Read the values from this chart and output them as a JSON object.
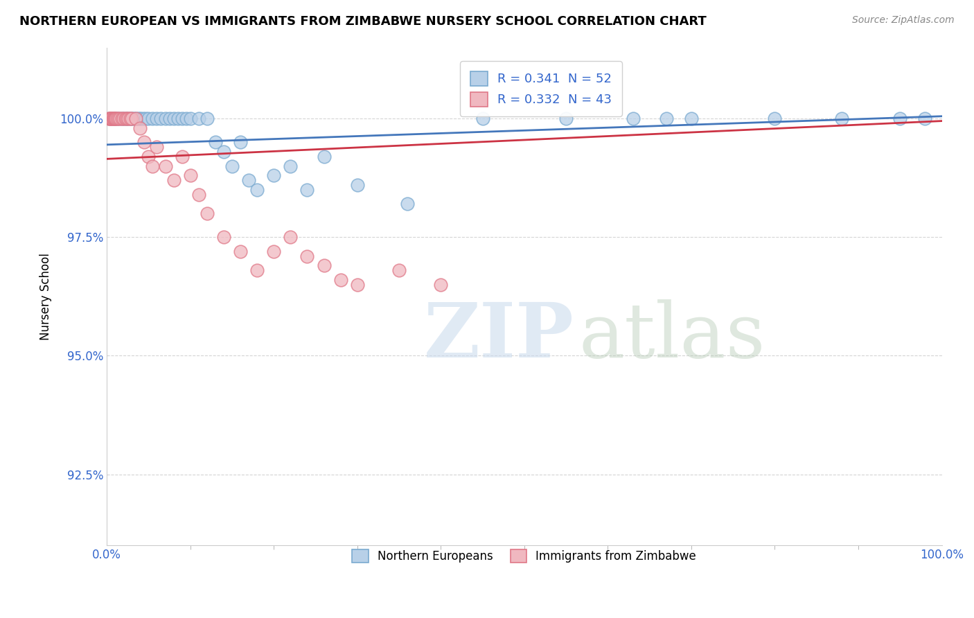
{
  "title": "NORTHERN EUROPEAN VS IMMIGRANTS FROM ZIMBABWE NURSERY SCHOOL CORRELATION CHART",
  "source": "Source: ZipAtlas.com",
  "ylabel": "Nursery School",
  "xlim": [
    0,
    100
  ],
  "ylim": [
    91.0,
    101.5
  ],
  "yticks": [
    92.5,
    95.0,
    97.5,
    100.0
  ],
  "xtick_labels": [
    "0.0%",
    "100.0%"
  ],
  "ytick_labels": [
    "92.5%",
    "95.0%",
    "97.5%",
    "100.0%"
  ],
  "blue_color": "#b8d0e8",
  "blue_edge_color": "#7aaad0",
  "pink_color": "#f0b8c0",
  "pink_edge_color": "#e07888",
  "blue_line_color": "#4477bb",
  "pink_line_color": "#cc3344",
  "legend_blue_label": "R = 0.341  N = 52",
  "legend_pink_label": "R = 0.332  N = 43",
  "watermark_zip": "ZIP",
  "watermark_atlas": "atlas",
  "blue_scatter_x": [
    0.3,
    0.5,
    0.8,
    1.0,
    1.2,
    1.5,
    1.8,
    2.0,
    2.3,
    2.5,
    2.8,
    3.0,
    3.2,
    3.5,
    3.8,
    4.0,
    4.3,
    4.6,
    5.0,
    5.5,
    6.0,
    6.5,
    7.0,
    7.5,
    8.0,
    8.5,
    9.0,
    9.5,
    10.0,
    11.0,
    12.0,
    13.0,
    14.0,
    15.0,
    16.0,
    17.0,
    18.0,
    20.0,
    22.0,
    24.0,
    26.0,
    30.0,
    36.0,
    45.0,
    55.0,
    63.0,
    67.0,
    70.0,
    80.0,
    88.0,
    95.0,
    98.0
  ],
  "blue_scatter_y": [
    100.0,
    100.0,
    100.0,
    100.0,
    100.0,
    100.0,
    100.0,
    100.0,
    100.0,
    100.0,
    100.0,
    100.0,
    100.0,
    100.0,
    100.0,
    100.0,
    100.0,
    100.0,
    100.0,
    100.0,
    100.0,
    100.0,
    100.0,
    100.0,
    100.0,
    100.0,
    100.0,
    100.0,
    100.0,
    100.0,
    100.0,
    99.5,
    99.3,
    99.0,
    99.5,
    98.7,
    98.5,
    98.8,
    99.0,
    98.5,
    99.2,
    98.6,
    98.2,
    100.0,
    100.0,
    100.0,
    100.0,
    100.0,
    100.0,
    100.0,
    100.0,
    100.0
  ],
  "pink_scatter_x": [
    0.2,
    0.3,
    0.4,
    0.5,
    0.6,
    0.7,
    0.8,
    0.9,
    1.0,
    1.1,
    1.2,
    1.4,
    1.6,
    1.8,
    2.0,
    2.2,
    2.4,
    2.6,
    2.8,
    3.0,
    3.5,
    4.0,
    4.5,
    5.0,
    5.5,
    6.0,
    7.0,
    8.0,
    9.0,
    10.0,
    11.0,
    12.0,
    14.0,
    16.0,
    18.0,
    20.0,
    22.0,
    24.0,
    26.0,
    28.0,
    30.0,
    35.0,
    40.0
  ],
  "pink_scatter_y": [
    100.0,
    100.0,
    100.0,
    100.0,
    100.0,
    100.0,
    100.0,
    100.0,
    100.0,
    100.0,
    100.0,
    100.0,
    100.0,
    100.0,
    100.0,
    100.0,
    100.0,
    100.0,
    100.0,
    100.0,
    100.0,
    99.8,
    99.5,
    99.2,
    99.0,
    99.4,
    99.0,
    98.7,
    99.2,
    98.8,
    98.4,
    98.0,
    97.5,
    97.2,
    96.8,
    97.2,
    97.5,
    97.1,
    96.9,
    96.6,
    96.5,
    96.8,
    96.5
  ],
  "blue_trend_x": [
    0,
    100
  ],
  "blue_trend_y": [
    99.55,
    100.0
  ],
  "pink_trend_x": [
    0,
    100
  ],
  "pink_trend_y": [
    99.6,
    100.05
  ]
}
